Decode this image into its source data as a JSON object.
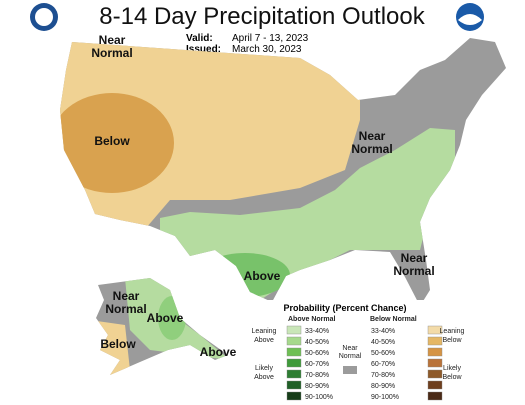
{
  "header": {
    "title": "8-14 Day Precipitation Outlook",
    "valid_label": "Valid:",
    "valid": "April 7 - 13, 2023",
    "issued_label": "Issued:",
    "issued": "March 30, 2023"
  },
  "map_labels": [
    {
      "lines": [
        "Near",
        "Normal"
      ]
    },
    {
      "lines": [
        "Below"
      ]
    },
    {
      "lines": [
        "Near",
        "Normal"
      ]
    },
    {
      "lines": [
        "Above"
      ]
    },
    {
      "lines": [
        "Near",
        "Normal"
      ]
    },
    {
      "lines": [
        "Near",
        "Normal"
      ]
    },
    {
      "lines": [
        "Below"
      ]
    },
    {
      "lines": [
        "Above"
      ]
    },
    {
      "lines": [
        "Above"
      ]
    }
  ],
  "legend": {
    "title": "Probability (Percent Chance)",
    "above_header": "Above Normal",
    "below_header": "Below Normal",
    "near": [
      "Near",
      "Normal"
    ],
    "ranges": [
      "33-40%",
      "40-50%",
      "50-60%",
      "60-70%",
      "70-80%",
      "80-90%",
      "90-100%"
    ],
    "above_groups": [
      [
        "Leaning",
        "Above"
      ],
      [
        "Likely",
        "Above"
      ]
    ],
    "below_groups": [
      [
        "Leaning",
        "Below"
      ],
      [
        "Likely",
        "Below"
      ]
    ]
  }
}
